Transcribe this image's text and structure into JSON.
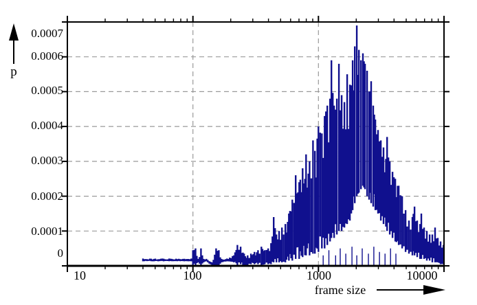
{
  "figure": {
    "y_axis_title": "p",
    "x_axis_title": "frame size",
    "y_tick_labels": [
      "0.0007",
      "0.0006",
      "0.0005",
      "0.0004",
      "0.0003",
      "0.0002",
      "0.0001",
      "0"
    ],
    "x_tick_labels": [
      "10",
      "100",
      "1000",
      "10000"
    ]
  },
  "colors": {
    "data": "#10108E",
    "grid": "#999999",
    "axis": "#000000",
    "background": "#FFFFFF"
  },
  "chart_data": {
    "type": "area",
    "title": "",
    "xlabel": "frame size",
    "ylabel": "p",
    "xscale": "log",
    "yscale": "linear",
    "xlim": [
      10,
      10000
    ],
    "ylim": [
      0,
      0.0007
    ],
    "x_major_ticks": [
      10,
      100,
      1000,
      10000
    ],
    "y_major_ticks": [
      0,
      0.0001,
      0.0002,
      0.0003,
      0.0004,
      0.0005,
      0.0006,
      0.0007
    ],
    "x_gridlines": [
      100,
      1000
    ],
    "y_gridlines": [
      0.0001,
      0.0002,
      0.0003,
      0.0004,
      0.0005,
      0.0006
    ],
    "grid": true,
    "legend": null,
    "description": "Noisy probability density of frame sizes; envelope samples are [frame_size, p_min, p_max]; isolated near-zero spikes under the peak are [frame_size, p].",
    "envelope": [
      [
        40,
        1.3e-05,
        2.1e-05
      ],
      [
        97,
        1.3e-05,
        2.1e-05
      ],
      [
        100,
        0,
        4.5e-05
      ],
      [
        105,
        0,
        5e-05
      ],
      [
        110,
        1e-05,
        2e-05
      ],
      [
        116,
        0,
        5e-05
      ],
      [
        122,
        1e-05,
        2e-05
      ],
      [
        128,
        1.3e-05,
        2e-05
      ],
      [
        142,
        0,
        1e-05
      ],
      [
        153,
        0,
        5e-05
      ],
      [
        161,
        0,
        4.5e-05
      ],
      [
        169,
        1e-05,
        2e-05
      ],
      [
        187,
        1.3e-05,
        2.1e-05
      ],
      [
        212,
        1e-05,
        3e-05
      ],
      [
        226,
        0,
        6e-05
      ],
      [
        240,
        5e-06,
        5.5e-05
      ],
      [
        256,
        0,
        3.5e-05
      ],
      [
        273,
        0,
        3e-05
      ],
      [
        290,
        5e-06,
        3.5e-05
      ],
      [
        309,
        5e-06,
        4e-05
      ],
      [
        330,
        5e-06,
        4.5e-05
      ],
      [
        351,
        0,
        5.5e-05
      ],
      [
        374,
        5e-06,
        4.5e-05
      ],
      [
        398,
        5e-06,
        5e-05
      ],
      [
        419,
        5e-06,
        6.5e-05
      ],
      [
        440,
        1e-05,
        0.00014
      ],
      [
        463,
        1e-05,
        9e-05
      ],
      [
        486,
        1e-05,
        0.0001
      ],
      [
        512,
        1e-05,
        0.00011
      ],
      [
        545,
        1e-05,
        0.00012
      ],
      [
        581,
        1.5e-05,
        0.00015
      ],
      [
        619,
        1.5e-05,
        0.00019
      ],
      [
        659,
        2e-05,
        0.00026
      ],
      [
        702,
        2e-05,
        0.00024
      ],
      [
        748,
        2.5e-05,
        0.00028
      ],
      [
        797,
        3e-05,
        0.00032
      ],
      [
        850,
        3e-05,
        0.0003
      ],
      [
        905,
        3.5e-05,
        0.00036
      ],
      [
        937,
        3.5e-05,
        0.00033
      ],
      [
        1000,
        4e-05,
        0.0004
      ],
      [
        1064,
        5e-05,
        0.00038
      ],
      [
        1119,
        5e-05,
        0.00043
      ],
      [
        1176,
        6e-05,
        0.00046
      ],
      [
        1237,
        7e-05,
        0.00048
      ],
      [
        1268,
        8e-05,
        0.00059
      ],
      [
        1333,
        8e-05,
        0.00046
      ],
      [
        1402,
        9e-05,
        0.00048
      ],
      [
        1456,
        0.0001,
        0.00058
      ],
      [
        1531,
        0.0001,
        0.00049
      ],
      [
        1610,
        0.00011,
        0.00047
      ],
      [
        1693,
        0.00012,
        0.00055
      ],
      [
        1780,
        0.00013,
        0.00052
      ],
      [
        1872,
        0.00016,
        0.00059
      ],
      [
        1946,
        0.00018,
        0.00063
      ],
      [
        2020,
        0.0002,
        0.00069
      ],
      [
        2100,
        0.00021,
        0.00062
      ],
      [
        2180,
        0.00022,
        0.00059
      ],
      [
        2260,
        0.00023,
        0.00061
      ],
      [
        2350,
        0.00022,
        0.00058
      ],
      [
        2440,
        0.0002,
        0.00056
      ],
      [
        2530,
        0.00019,
        0.0005
      ],
      [
        2630,
        0.00018,
        0.00053
      ],
      [
        2730,
        0.00017,
        0.00046
      ],
      [
        2840,
        0.00016,
        0.00042
      ],
      [
        2980,
        0.00015,
        0.00039
      ],
      [
        3140,
        0.00013,
        0.00036
      ],
      [
        3300,
        0.00012,
        0.00034
      ],
      [
        3520,
        0.0001,
        0.00037
      ],
      [
        3700,
        9e-05,
        0.0003
      ],
      [
        3890,
        8e-05,
        0.00027
      ],
      [
        4090,
        7e-05,
        0.00025
      ],
      [
        4360,
        6e-05,
        0.00023
      ],
      [
        4640,
        5e-05,
        0.0002
      ],
      [
        4940,
        4e-05,
        0.00016
      ],
      [
        5260,
        3.5e-05,
        0.00013
      ],
      [
        5600,
        3e-05,
        0.00014
      ],
      [
        5820,
        3e-05,
        0.00017
      ],
      [
        6120,
        2.5e-05,
        0.00013
      ],
      [
        6440,
        2e-05,
        0.00012
      ],
      [
        6600,
        2e-05,
        0.00015
      ],
      [
        6940,
        2e-05,
        0.00011
      ],
      [
        7300,
        1.5e-05,
        0.0001
      ],
      [
        7680,
        1.5e-05,
        9e-05
      ],
      [
        8070,
        1e-05,
        9e-05
      ],
      [
        8490,
        1e-05,
        0.00011
      ],
      [
        8930,
        1e-05,
        8e-05
      ],
      [
        9390,
        5e-06,
        7e-05
      ],
      [
        9900,
        5e-06,
        6e-05
      ]
    ],
    "floor_spikes": [
      [
        1090,
        3e-05
      ],
      [
        1210,
        4.5e-05
      ],
      [
        1370,
        3e-05
      ],
      [
        1490,
        5e-05
      ],
      [
        1650,
        3.5e-05
      ],
      [
        1850,
        5.5e-05
      ],
      [
        2020,
        3e-05
      ],
      [
        2230,
        5e-05
      ],
      [
        2500,
        3.5e-05
      ],
      [
        2760,
        5.5e-05
      ],
      [
        3060,
        4e-05
      ],
      [
        3390,
        3.5e-05
      ],
      [
        3750,
        5e-05
      ],
      [
        4140,
        3.5e-05
      ]
    ]
  }
}
